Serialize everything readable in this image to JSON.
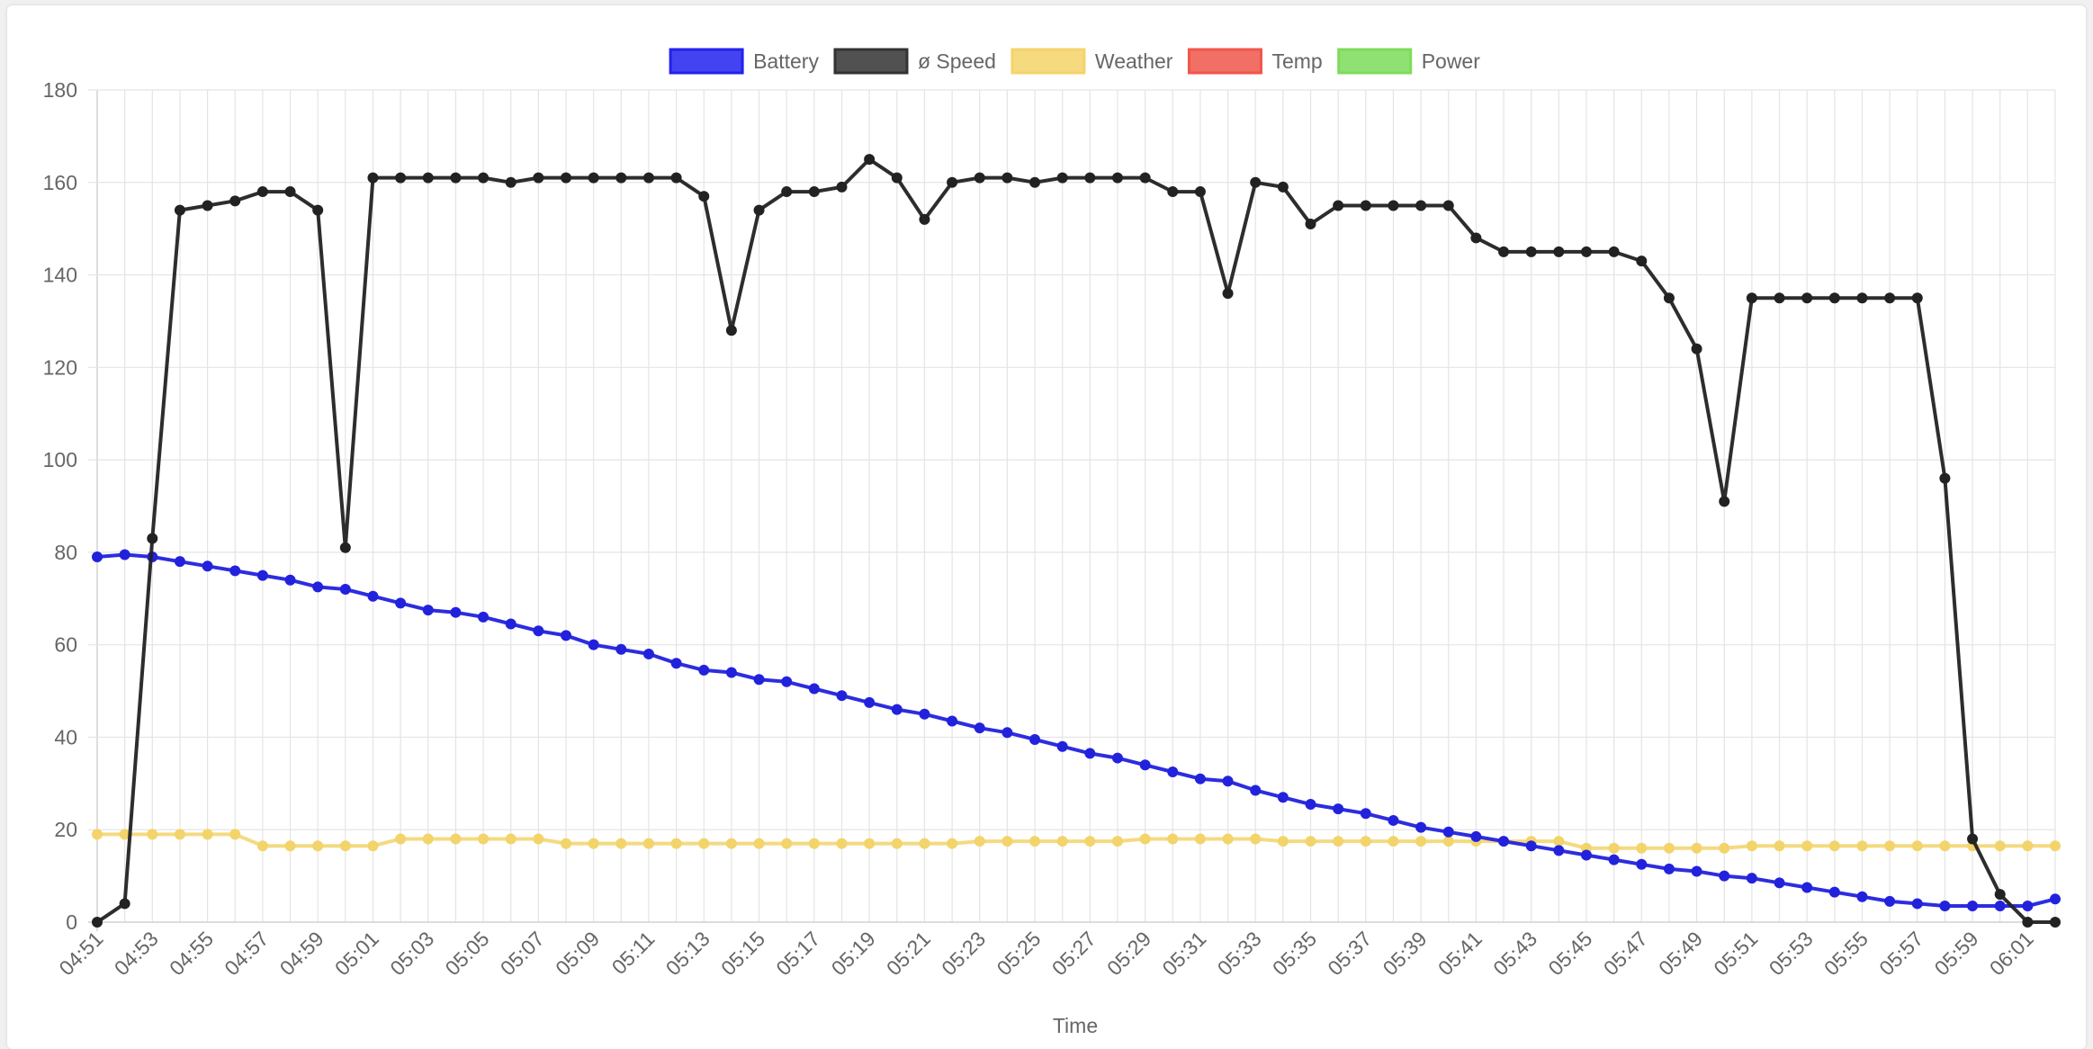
{
  "chart_data": {
    "type": "line",
    "xlabel": "Time",
    "ylim": [
      0,
      180
    ],
    "y_ticks": [
      0,
      20,
      40,
      60,
      80,
      100,
      120,
      140,
      160,
      180
    ],
    "x_tick_labels": [
      "04:51",
      "04:53",
      "04:55",
      "04:57",
      "04:59",
      "05:01",
      "05:03",
      "05:05",
      "05:07",
      "05:09",
      "05:11",
      "05:13",
      "05:15",
      "05:17",
      "05:19",
      "05:21",
      "05:23",
      "05:25",
      "05:27",
      "05:29",
      "05:31",
      "05:33",
      "05:35",
      "05:37",
      "05:39",
      "05:41",
      "05:43",
      "05:45",
      "05:47",
      "05:49",
      "05:51",
      "05:53",
      "05:55",
      "05:57",
      "05:59",
      "06:01"
    ],
    "x_start": "04:51",
    "x_end": "06:02",
    "grid": true,
    "legend_position": "top-center",
    "legend": [
      {
        "name": "Battery",
        "color": "#2222ee"
      },
      {
        "name": "ø Speed",
        "color": "#333333"
      },
      {
        "name": "Weather",
        "color": "#f5d36a"
      },
      {
        "name": "Temp",
        "color": "#f0564a"
      },
      {
        "name": "Power",
        "color": "#7ddc5a"
      }
    ],
    "series": [
      {
        "name": "Battery",
        "color": "#2222dd",
        "values": [
          79,
          79.5,
          79,
          78,
          77,
          76,
          75,
          74,
          72.5,
          72,
          70.5,
          69,
          67.5,
          67,
          66,
          64.5,
          63,
          62,
          60,
          59,
          58,
          56,
          54.5,
          54,
          52.5,
          52,
          50.5,
          49,
          47.5,
          46,
          45,
          43.5,
          42,
          41,
          39.5,
          38,
          36.5,
          35.5,
          34,
          32.5,
          31,
          30.5,
          28.5,
          27,
          25.5,
          24.5,
          23.5,
          22,
          20.5,
          19.5,
          18.5,
          17.5,
          16.5,
          15.5,
          14.5,
          13.5,
          12.5,
          11.5,
          11,
          10,
          9.5,
          8.5,
          7.5,
          6.5,
          5.5,
          4.5,
          4,
          3.5,
          3.5,
          3.5,
          3.5,
          5
        ]
      },
      {
        "name": "ø Speed",
        "color": "#222222",
        "values": [
          0,
          4,
          83,
          154,
          155,
          156,
          158,
          158,
          154,
          81,
          161,
          161,
          161,
          161,
          161,
          160,
          161,
          161,
          161,
          161,
          161,
          161,
          157,
          128,
          154,
          158,
          158,
          159,
          165,
          161,
          152,
          160,
          161,
          161,
          160,
          161,
          161,
          161,
          161,
          158,
          158,
          136,
          160,
          159,
          151,
          155,
          155,
          155,
          155,
          155,
          148,
          145,
          145,
          145,
          145,
          145,
          143,
          135,
          124,
          91,
          135,
          135,
          135,
          135,
          135,
          135,
          135,
          96,
          18,
          6,
          0,
          0
        ]
      },
      {
        "name": "Weather",
        "color": "#f2d46b",
        "values": [
          19,
          19,
          19,
          19,
          19,
          19,
          16.5,
          16.5,
          16.5,
          16.5,
          16.5,
          18,
          18,
          18,
          18,
          18,
          18,
          17,
          17,
          17,
          17,
          17,
          17,
          17,
          17,
          17,
          17,
          17,
          17,
          17,
          17,
          17,
          17.5,
          17.5,
          17.5,
          17.5,
          17.5,
          17.5,
          18,
          18,
          18,
          18,
          18,
          17.5,
          17.5,
          17.5,
          17.5,
          17.5,
          17.5,
          17.5,
          17.5,
          17.5,
          17.5,
          17.5,
          16,
          16,
          16,
          16,
          16,
          16,
          16.5,
          16.5,
          16.5,
          16.5,
          16.5,
          16.5,
          16.5,
          16.5,
          16.5,
          16.5,
          16.5,
          16.5
        ]
      }
    ]
  }
}
